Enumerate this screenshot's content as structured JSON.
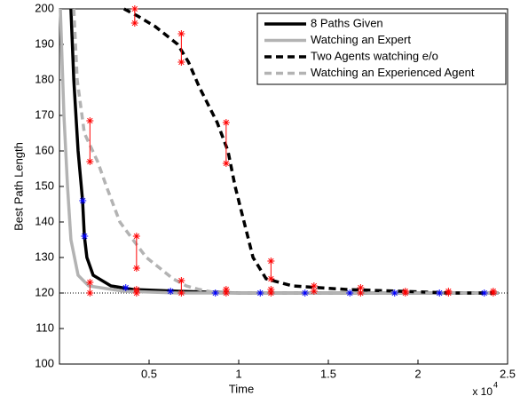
{
  "chart_data": {
    "type": "line",
    "xlabel": "Time",
    "ylabel": "Best Path Length",
    "x_multiplier": {
      "base": "x 10",
      "exponent": "4"
    },
    "xlim": [
      0,
      2.5
    ],
    "ylim": [
      100,
      200
    ],
    "xticks": [
      0.5,
      1,
      1.5,
      2,
      2.5
    ],
    "yticks": [
      100,
      110,
      120,
      130,
      140,
      150,
      160,
      170,
      180,
      190,
      200
    ],
    "reference_line": 120,
    "legend": "upper right",
    "series": [
      {
        "name": "8 Paths Given",
        "color": "#000000",
        "dash": false,
        "x": [
          0.064,
          0.08,
          0.104,
          0.129,
          0.139,
          0.153,
          0.188,
          0.287,
          0.41,
          0.66,
          1.0,
          2.45
        ],
        "y": [
          200,
          180,
          160,
          146,
          136,
          130,
          125,
          122,
          121,
          120.5,
          120,
          120
        ]
      },
      {
        "name": "Watching an Expert",
        "color": "#b3b3b3",
        "dash": false,
        "x": [
          0.005,
          0.025,
          0.045,
          0.064,
          0.104,
          0.163,
          0.36,
          0.66,
          2.45
        ],
        "y": [
          200,
          170,
          150,
          135,
          125,
          122,
          120.5,
          120,
          120
        ]
      },
      {
        "name": "Two Agents watching e/o",
        "color": "#000000",
        "dash": true,
        "x": [
          0.36,
          0.436,
          0.535,
          0.66,
          0.72,
          0.78,
          0.88,
          0.94,
          0.98,
          1.03,
          1.08,
          1.153,
          1.3,
          1.6,
          1.9,
          2.19,
          2.45
        ],
        "y": [
          200,
          198,
          195,
          190,
          185,
          178,
          168,
          160,
          150,
          140,
          130,
          124,
          122,
          121,
          120.5,
          120,
          120
        ]
      },
      {
        "name": "Watching an Experienced Agent",
        "color": "#b3b3b3",
        "dash": true,
        "x": [
          0.08,
          0.099,
          0.139,
          0.213,
          0.262,
          0.337,
          0.41,
          0.485,
          0.56,
          0.634,
          0.708,
          0.78,
          0.88,
          2.45
        ],
        "y": [
          200,
          180,
          165,
          157,
          150,
          140,
          135,
          130,
          127,
          124,
          122,
          121,
          120,
          120
        ]
      }
    ],
    "error_bars": {
      "color": "#ff0000",
      "points": [
        {
          "x": 0.42,
          "low": 196,
          "high": 200
        },
        {
          "x": 0.68,
          "low": 185,
          "high": 193
        },
        {
          "x": 0.93,
          "low": 156.5,
          "high": 168
        },
        {
          "x": 1.18,
          "low": 124,
          "high": 129
        },
        {
          "x": 0.17,
          "low": 157,
          "high": 168.5
        },
        {
          "x": 0.43,
          "low": 127,
          "high": 136
        },
        {
          "x": 0.17,
          "low": 120,
          "high": 123
        },
        {
          "x": 0.68,
          "low": 120,
          "high": 123.5
        },
        {
          "x": 0.43,
          "low": 120,
          "high": 121
        },
        {
          "x": 0.93,
          "low": 120,
          "high": 121
        },
        {
          "x": 1.18,
          "low": 120,
          "high": 121
        },
        {
          "x": 1.42,
          "low": 120.5,
          "high": 122
        },
        {
          "x": 1.68,
          "low": 120,
          "high": 121.5
        },
        {
          "x": 1.93,
          "low": 120,
          "high": 120.5
        },
        {
          "x": 2.17,
          "low": 120,
          "high": 120.5
        },
        {
          "x": 2.42,
          "low": 120,
          "high": 120.5
        }
      ]
    },
    "markers": {
      "color": "#0000ff",
      "x": [
        0.13,
        0.14,
        0.37,
        0.62,
        0.87,
        1.12,
        1.37,
        1.62,
        1.87,
        2.12,
        2.37
      ],
      "y": [
        146,
        136,
        121.5,
        120.5,
        120,
        120,
        120,
        120,
        120,
        120,
        120
      ]
    }
  }
}
